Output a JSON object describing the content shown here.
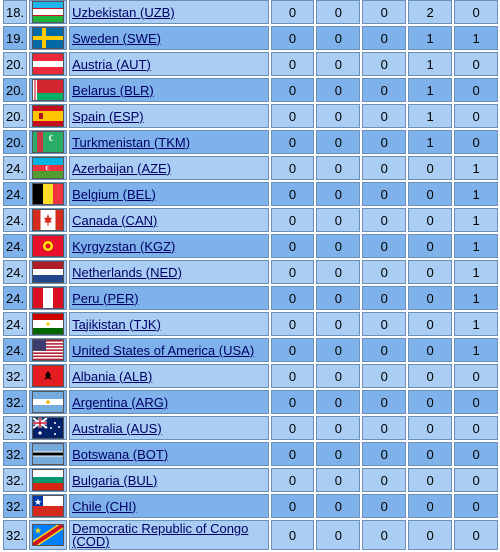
{
  "rows": [
    {
      "rank": "18.",
      "country": "Uzbekistan (UZB)",
      "flag": "uzb",
      "values": [
        "0",
        "0",
        "0",
        "2",
        "0"
      ]
    },
    {
      "rank": "19.",
      "country": "Sweden (SWE)",
      "flag": "swe",
      "values": [
        "0",
        "0",
        "0",
        "1",
        "1"
      ]
    },
    {
      "rank": "20.",
      "country": "Austria (AUT)",
      "flag": "aut",
      "values": [
        "0",
        "0",
        "0",
        "1",
        "0"
      ]
    },
    {
      "rank": "20.",
      "country": "Belarus (BLR)",
      "flag": "blr",
      "values": [
        "0",
        "0",
        "0",
        "1",
        "0"
      ]
    },
    {
      "rank": "20.",
      "country": "Spain (ESP)",
      "flag": "esp",
      "values": [
        "0",
        "0",
        "0",
        "1",
        "0"
      ]
    },
    {
      "rank": "20.",
      "country": "Turkmenistan (TKM)",
      "flag": "tkm",
      "values": [
        "0",
        "0",
        "0",
        "1",
        "0"
      ]
    },
    {
      "rank": "24.",
      "country": "Azerbaijan (AZE)",
      "flag": "aze",
      "values": [
        "0",
        "0",
        "0",
        "0",
        "1"
      ]
    },
    {
      "rank": "24.",
      "country": "Belgium (BEL)",
      "flag": "bel",
      "values": [
        "0",
        "0",
        "0",
        "0",
        "1"
      ]
    },
    {
      "rank": "24.",
      "country": "Canada (CAN)",
      "flag": "can",
      "values": [
        "0",
        "0",
        "0",
        "0",
        "1"
      ]
    },
    {
      "rank": "24.",
      "country": "Kyrgyzstan (KGZ)",
      "flag": "kgz",
      "values": [
        "0",
        "0",
        "0",
        "0",
        "1"
      ]
    },
    {
      "rank": "24.",
      "country": "Netherlands (NED)",
      "flag": "ned",
      "values": [
        "0",
        "0",
        "0",
        "0",
        "1"
      ]
    },
    {
      "rank": "24.",
      "country": "Peru (PER)",
      "flag": "per",
      "values": [
        "0",
        "0",
        "0",
        "0",
        "1"
      ]
    },
    {
      "rank": "24.",
      "country": "Tajikistan (TJK)",
      "flag": "tjk",
      "values": [
        "0",
        "0",
        "0",
        "0",
        "1"
      ]
    },
    {
      "rank": "24.",
      "country": "United States of America (USA)",
      "flag": "usa",
      "values": [
        "0",
        "0",
        "0",
        "0",
        "1"
      ]
    },
    {
      "rank": "32.",
      "country": "Albania (ALB)",
      "flag": "alb",
      "values": [
        "0",
        "0",
        "0",
        "0",
        "0"
      ]
    },
    {
      "rank": "32.",
      "country": "Argentina (ARG)",
      "flag": "arg",
      "values": [
        "0",
        "0",
        "0",
        "0",
        "0"
      ]
    },
    {
      "rank": "32.",
      "country": "Australia (AUS)",
      "flag": "aus",
      "values": [
        "0",
        "0",
        "0",
        "0",
        "0"
      ]
    },
    {
      "rank": "32.",
      "country": "Botswana (BOT)",
      "flag": "bot",
      "values": [
        "0",
        "0",
        "0",
        "0",
        "0"
      ]
    },
    {
      "rank": "32.",
      "country": "Bulgaria (BUL)",
      "flag": "bul",
      "values": [
        "0",
        "0",
        "0",
        "0",
        "0"
      ]
    },
    {
      "rank": "32.",
      "country": "Chile (CHI)",
      "flag": "chi",
      "values": [
        "0",
        "0",
        "0",
        "0",
        "0"
      ]
    },
    {
      "rank": "32.",
      "country": "Democratic Republic of Congo (COD)",
      "flag": "cod",
      "values": [
        "0",
        "0",
        "0",
        "0",
        "0"
      ]
    }
  ]
}
